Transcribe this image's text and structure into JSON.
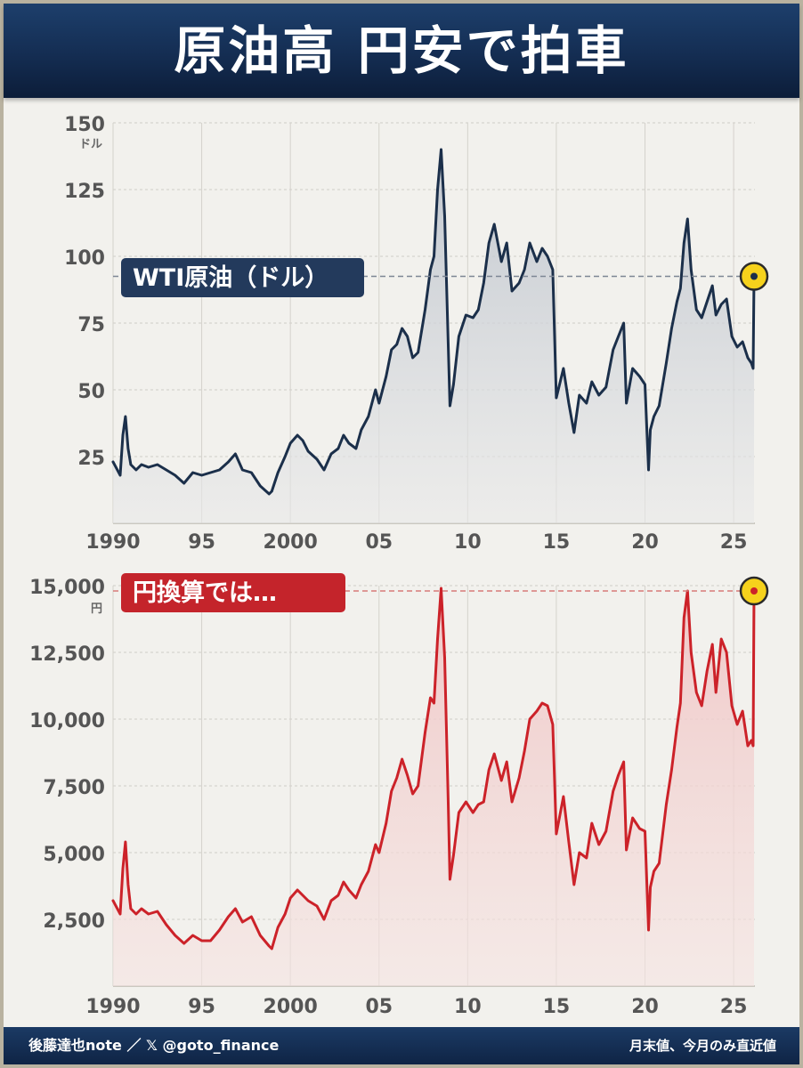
{
  "title": "原油高 円安で拍車",
  "footer": {
    "left": "後藤達也note ／ 𝕏 @goto_finance",
    "right": "月末値、今月のみ直近値"
  },
  "chart_data": [
    {
      "type": "area",
      "series_label": "WTI原油（ドル）",
      "unit": "ドル",
      "ylim": [
        0,
        150
      ],
      "yticks": [
        25,
        50,
        75,
        100,
        125,
        150
      ],
      "ytick_labels": [
        "25",
        "50",
        "75",
        "100",
        "125",
        "150"
      ],
      "xlim": [
        1990,
        2026.2
      ],
      "xticks": [
        1990,
        1995,
        2000,
        2005,
        2010,
        2015,
        2020,
        2025
      ],
      "xtick_labels": [
        "1990",
        "95",
        "2000",
        "05",
        "10",
        "15",
        "20",
        "25"
      ],
      "grid": true,
      "reference_value": 92.5,
      "latest": {
        "x": 2026.15,
        "y": 92.5
      },
      "x": [
        1990.0,
        1990.4,
        1990.55,
        1990.7,
        1990.85,
        1991.0,
        1991.3,
        1991.6,
        1992.0,
        1992.5,
        1993.0,
        1993.5,
        1994.0,
        1994.5,
        1995.0,
        1995.5,
        1996.0,
        1996.5,
        1996.9,
        1997.3,
        1997.8,
        1998.3,
        1998.8,
        1998.95,
        1999.3,
        1999.7,
        2000.0,
        2000.4,
        2000.7,
        2001.0,
        2001.5,
        2001.9,
        2002.3,
        2002.7,
        2003.0,
        2003.3,
        2003.7,
        2004.0,
        2004.4,
        2004.8,
        2005.0,
        2005.4,
        2005.7,
        2006.0,
        2006.3,
        2006.6,
        2006.9,
        2007.2,
        2007.6,
        2007.9,
        2008.1,
        2008.3,
        2008.5,
        2008.7,
        2008.9,
        2009.0,
        2009.2,
        2009.5,
        2009.9,
        2010.3,
        2010.6,
        2010.9,
        2011.2,
        2011.5,
        2011.9,
        2012.2,
        2012.5,
        2012.9,
        2013.2,
        2013.5,
        2013.9,
        2014.2,
        2014.5,
        2014.8,
        2015.0,
        2015.4,
        2015.7,
        2016.0,
        2016.3,
        2016.7,
        2017.0,
        2017.4,
        2017.8,
        2018.2,
        2018.5,
        2018.8,
        2018.95,
        2019.3,
        2019.7,
        2020.0,
        2020.2,
        2020.3,
        2020.5,
        2020.8,
        2021.2,
        2021.5,
        2021.8,
        2022.0,
        2022.2,
        2022.4,
        2022.6,
        2022.9,
        2023.2,
        2023.5,
        2023.8,
        2024.0,
        2024.3,
        2024.6,
        2024.9,
        2025.2,
        2025.5,
        2025.8,
        2026.0,
        2026.1,
        2026.15
      ],
      "values": [
        23,
        18,
        33,
        40,
        28,
        22,
        20,
        22,
        21,
        22,
        20,
        18,
        15,
        19,
        18,
        19,
        20,
        23,
        26,
        20,
        19,
        14,
        11,
        12,
        19,
        25,
        30,
        33,
        31,
        27,
        24,
        20,
        26,
        28,
        33,
        30,
        28,
        35,
        40,
        50,
        45,
        55,
        65,
        67,
        73,
        70,
        62,
        64,
        80,
        95,
        100,
        125,
        140,
        115,
        68,
        44,
        52,
        70,
        78,
        77,
        80,
        90,
        105,
        112,
        98,
        105,
        87,
        90,
        95,
        105,
        98,
        103,
        100,
        95,
        47,
        58,
        45,
        34,
        48,
        45,
        53,
        48,
        51,
        65,
        70,
        75,
        45,
        58,
        55,
        52,
        20,
        35,
        40,
        44,
        60,
        73,
        83,
        88,
        105,
        114,
        95,
        80,
        77,
        83,
        89,
        78,
        82,
        84,
        70,
        66,
        68,
        62,
        60,
        58,
        92.5
      ]
    },
    {
      "type": "area",
      "series_label": "円換算では…",
      "unit": "円",
      "ylim": [
        0,
        15000
      ],
      "yticks": [
        2500,
        5000,
        7500,
        10000,
        12500,
        15000
      ],
      "ytick_labels": [
        "2,500",
        "5,000",
        "7,500",
        "10,000",
        "12,500",
        "15,000"
      ],
      "xlim": [
        1990,
        2026.2
      ],
      "xticks": [
        1990,
        1995,
        2000,
        2005,
        2010,
        2015,
        2020,
        2025
      ],
      "xtick_labels": [
        "1990",
        "95",
        "2000",
        "05",
        "10",
        "15",
        "20",
        "25"
      ],
      "grid": true,
      "reference_value": 14800,
      "latest": {
        "x": 2026.15,
        "y": 14800
      },
      "x": [
        1990.0,
        1990.4,
        1990.55,
        1990.7,
        1990.85,
        1991.0,
        1991.3,
        1991.6,
        1992.0,
        1992.5,
        1993.0,
        1993.5,
        1994.0,
        1994.5,
        1995.0,
        1995.5,
        1996.0,
        1996.5,
        1996.9,
        1997.3,
        1997.8,
        1998.3,
        1998.8,
        1998.95,
        1999.3,
        1999.7,
        2000.0,
        2000.4,
        2000.7,
        2001.0,
        2001.5,
        2001.9,
        2002.3,
        2002.7,
        2003.0,
        2003.3,
        2003.7,
        2004.0,
        2004.4,
        2004.8,
        2005.0,
        2005.4,
        2005.7,
        2006.0,
        2006.3,
        2006.6,
        2006.9,
        2007.2,
        2007.6,
        2007.9,
        2008.1,
        2008.3,
        2008.5,
        2008.7,
        2008.9,
        2009.0,
        2009.2,
        2009.5,
        2009.9,
        2010.3,
        2010.6,
        2010.9,
        2011.2,
        2011.5,
        2011.9,
        2012.2,
        2012.5,
        2012.9,
        2013.2,
        2013.5,
        2013.9,
        2014.2,
        2014.5,
        2014.8,
        2015.0,
        2015.4,
        2015.7,
        2016.0,
        2016.3,
        2016.7,
        2017.0,
        2017.4,
        2017.8,
        2018.2,
        2018.5,
        2018.8,
        2018.95,
        2019.3,
        2019.7,
        2020.0,
        2020.2,
        2020.3,
        2020.5,
        2020.8,
        2021.2,
        2021.5,
        2021.8,
        2022.0,
        2022.2,
        2022.4,
        2022.6,
        2022.9,
        2023.2,
        2023.5,
        2023.8,
        2024.0,
        2024.3,
        2024.6,
        2024.9,
        2025.2,
        2025.5,
        2025.8,
        2026.0,
        2026.1,
        2026.15
      ],
      "values": [
        3200,
        2700,
        4400,
        5400,
        3800,
        2900,
        2700,
        2900,
        2700,
        2800,
        2300,
        1900,
        1600,
        1900,
        1700,
        1700,
        2100,
        2600,
        2900,
        2400,
        2600,
        1900,
        1500,
        1400,
        2200,
        2700,
        3300,
        3600,
        3400,
        3200,
        3000,
        2500,
        3200,
        3400,
        3900,
        3600,
        3300,
        3800,
        4300,
        5300,
        5000,
        6100,
        7300,
        7800,
        8500,
        7900,
        7200,
        7500,
        9500,
        10800,
        10600,
        13000,
        14900,
        12300,
        7000,
        4000,
        4900,
        6500,
        6900,
        6500,
        6800,
        6900,
        8100,
        8700,
        7700,
        8400,
        6900,
        7800,
        8800,
        10000,
        10300,
        10600,
        10500,
        9800,
        5700,
        7100,
        5400,
        3800,
        5000,
        4800,
        6100,
        5300,
        5800,
        7300,
        7900,
        8400,
        5100,
        6300,
        5900,
        5800,
        2100,
        3700,
        4300,
        4600,
        6800,
        8100,
        9700,
        10600,
        13800,
        14800,
        12500,
        11000,
        10500,
        11800,
        12800,
        11000,
        13000,
        12500,
        10500,
        9800,
        10300,
        9000,
        9200,
        9000,
        14800
      ]
    }
  ]
}
